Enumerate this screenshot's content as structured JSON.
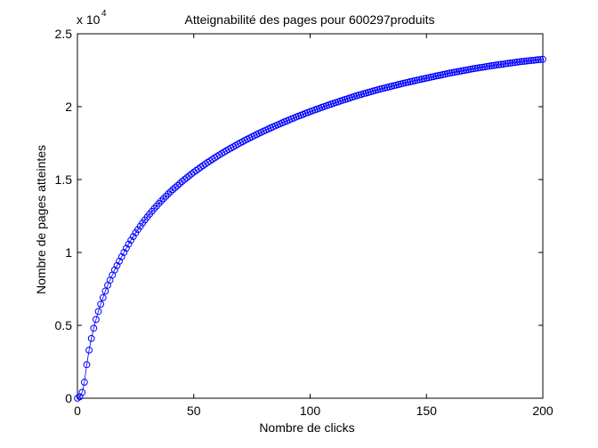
{
  "chart_data": {
    "type": "line",
    "title": "Atteignabilité des pages pour 600297produits",
    "xlabel": "Nombre de clicks",
    "ylabel": "Nombre de pages atteintes",
    "y_multiplier": {
      "text": "x 10",
      "exponent": "4"
    },
    "xlim": [
      0,
      200
    ],
    "ylim": [
      0,
      25000
    ],
    "xticks": [
      0,
      50,
      100,
      150,
      200
    ],
    "yticks": [
      0,
      5000,
      10000,
      15000,
      20000,
      25000
    ],
    "ytick_labels": [
      "0",
      "0.5",
      "1",
      "1.5",
      "2",
      "2.5"
    ],
    "grid": false,
    "colors": {
      "series": "#0000ff",
      "axes": "#000000",
      "background": "#ffffff"
    },
    "x": [
      0,
      1,
      2,
      3,
      4,
      5,
      6,
      7,
      8,
      9,
      10,
      11,
      12,
      13,
      14,
      15,
      16,
      17,
      18,
      19,
      20,
      21,
      22,
      23,
      24,
      25,
      26,
      27,
      28,
      29,
      30,
      31,
      32,
      33,
      34,
      35,
      36,
      37,
      38,
      39,
      40,
      41,
      42,
      43,
      44,
      45,
      46,
      47,
      48,
      49,
      50,
      51,
      52,
      53,
      54,
      55,
      56,
      57,
      58,
      59,
      60,
      61,
      62,
      63,
      64,
      65,
      66,
      67,
      68,
      69,
      70,
      71,
      72,
      73,
      74,
      75,
      76,
      77,
      78,
      79,
      80,
      81,
      82,
      83,
      84,
      85,
      86,
      87,
      88,
      89,
      90,
      91,
      92,
      93,
      94,
      95,
      96,
      97,
      98,
      99,
      100,
      101,
      102,
      103,
      104,
      105,
      106,
      107,
      108,
      109,
      110,
      111,
      112,
      113,
      114,
      115,
      116,
      117,
      118,
      119,
      120,
      121,
      122,
      123,
      124,
      125,
      126,
      127,
      128,
      129,
      130,
      131,
      132,
      133,
      134,
      135,
      136,
      137,
      138,
      139,
      140,
      141,
      142,
      143,
      144,
      145,
      146,
      147,
      148,
      149,
      150,
      151,
      152,
      153,
      154,
      155,
      156,
      157,
      158,
      159,
      160,
      161,
      162,
      163,
      164,
      165,
      166,
      167,
      168,
      169,
      170,
      171,
      172,
      173,
      174,
      175,
      176,
      177,
      178,
      179,
      180,
      181,
      182,
      183,
      184,
      185,
      186,
      187,
      188,
      189,
      190,
      191,
      192,
      193,
      194,
      195,
      196,
      197,
      198,
      199,
      200
    ],
    "series": [
      {
        "marker": "circle",
        "color": "#0000ff",
        "values": [
          0,
          100,
          400,
          1100,
          2300,
          3300,
          4100,
          4800,
          5400,
          5950,
          6450,
          6900,
          7350,
          7750,
          8100,
          8450,
          8800,
          9100,
          9400,
          9700,
          10000,
          10290,
          10570,
          10840,
          11090,
          11340,
          11570,
          11800,
          12020,
          12230,
          12430,
          12630,
          12820,
          13010,
          13180,
          13360,
          13530,
          13690,
          13850,
          14010,
          14160,
          14310,
          14450,
          14590,
          14730,
          14870,
          15000,
          15130,
          15250,
          15380,
          15500,
          15620,
          15730,
          15850,
          15960,
          16070,
          16180,
          16280,
          16390,
          16490,
          16590,
          16690,
          16790,
          16880,
          16980,
          17070,
          17160,
          17250,
          17340,
          17430,
          17520,
          17600,
          17690,
          17770,
          17850,
          17930,
          18010,
          18090,
          18170,
          18240,
          18320,
          18390,
          18470,
          18540,
          18610,
          18680,
          18750,
          18820,
          18890,
          18960,
          19020,
          19090,
          19160,
          19220,
          19290,
          19350,
          19410,
          19470,
          19540,
          19600,
          19660,
          19720,
          19780,
          19830,
          19890,
          19950,
          20010,
          20060,
          20120,
          20170,
          20230,
          20280,
          20330,
          20390,
          20440,
          20490,
          20540,
          20590,
          20650,
          20700,
          20750,
          20800,
          20840,
          20890,
          20930,
          20980,
          21020,
          21070,
          21110,
          21160,
          21200,
          21240,
          21280,
          21320,
          21360,
          21400,
          21440,
          21480,
          21520,
          21560,
          21600,
          21640,
          21670,
          21710,
          21740,
          21780,
          21820,
          21850,
          21890,
          21920,
          21960,
          21990,
          22030,
          22060,
          22100,
          22130,
          22160,
          22200,
          22230,
          22270,
          22300,
          22330,
          22360,
          22390,
          22420,
          22450,
          22480,
          22510,
          22540,
          22570,
          22600,
          22630,
          22650,
          22680,
          22700,
          22730,
          22760,
          22780,
          22810,
          22830,
          22860,
          22880,
          22900,
          22920,
          22950,
          22970,
          22990,
          23010,
          23030,
          23060,
          23080,
          23100,
          23110,
          23130,
          23150,
          23170,
          23180,
          23200,
          23220,
          23230,
          23250
        ]
      }
    ]
  }
}
